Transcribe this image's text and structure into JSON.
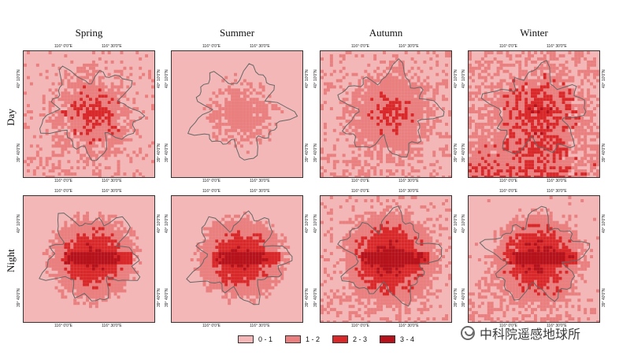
{
  "map": {
    "columns": [
      "Spring",
      "Summer",
      "Autumn",
      "Winter"
    ],
    "rows": [
      "Day",
      "Night"
    ],
    "lon_ticks": [
      "116° 0'0\"E",
      "116° 30'0\"E"
    ],
    "lat_ticks": [
      "40° 10'0\"N",
      "39° 40'0\"N"
    ]
  },
  "legend": {
    "items": [
      {
        "label": "0 - 1",
        "color": "#f4b6b6"
      },
      {
        "label": "1 - 2",
        "color": "#ea7f7f"
      },
      {
        "label": "2 - 3",
        "color": "#d8282a"
      },
      {
        "label": "3 - 4",
        "color": "#b5121b"
      }
    ]
  },
  "colors": {
    "background": "#ffffff",
    "class_0_1": "#f4b6b6",
    "class_1_2": "#ea7f7f",
    "class_2_3": "#d8282a",
    "class_3_4": "#b5121b",
    "boundary": "#666666"
  },
  "watermark": {
    "text": "中科院遥感地球所",
    "icon": "wechat-icon"
  }
}
